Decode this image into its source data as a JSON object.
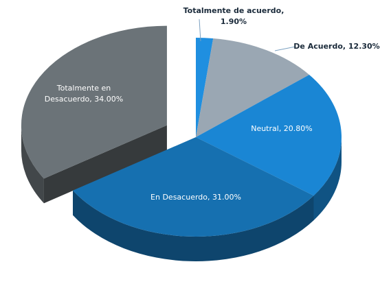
{
  "chart_data": {
    "type": "pie3d",
    "values": [
      1.9,
      12.3,
      20.8,
      31.0,
      34.0
    ],
    "value_labels": [
      "Totalmente de acuerdo, 1.90%",
      "De Acuerdo, 12.30%",
      "Neutral, 20.80%",
      "En Desacuerdo, 31.00%",
      "Totalmente en Desacuerdo, 34.00%"
    ],
    "colors": [
      "#1f8fe0",
      "#9aa7b3",
      "#1a86d4",
      "#1670b0",
      "#6b7378"
    ],
    "exploded": [
      4
    ]
  }
}
